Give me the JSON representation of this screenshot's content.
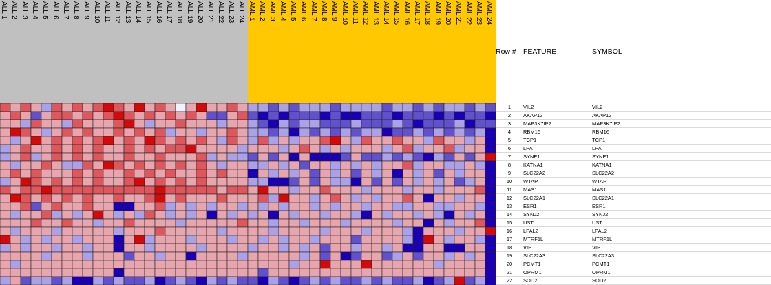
{
  "headers": {
    "row_num": "Row #",
    "feature": "FEATURE",
    "symbol": "SYMBOL"
  },
  "colors": {
    "group_all": "#c0c0c0",
    "group_aml": "#ffc800",
    "low": "#1a00b4",
    "mid": "#f2f2ff",
    "high": "#d20a0a"
  },
  "chart_data": {
    "type": "heatmap",
    "columns": [
      "ALL 1",
      "ALL 2",
      "ALL 3",
      "ALL 4",
      "ALL 5",
      "ALL 6",
      "ALL 7",
      "ALL 8",
      "ALL 9",
      "ALL 10",
      "ALL 11",
      "ALL 12",
      "ALL 13",
      "ALL 14",
      "ALL 15",
      "ALL 16",
      "ALL 17",
      "ALL 18",
      "ALL 19",
      "ALL 20",
      "ALL 21",
      "ALL 22",
      "ALL 23",
      "ALL 24",
      "AML 1",
      "AML 2",
      "AML 3",
      "AML 4",
      "AML 5",
      "AML 6",
      "AML 7",
      "AML 8",
      "AML 9",
      "AML 10",
      "AML 11",
      "AML 12",
      "AML 13",
      "AML 14",
      "AML 15",
      "AML 16",
      "AML 17",
      "AML 18",
      "AML 19",
      "AML 20",
      "AML 21",
      "AML 22",
      "AML 23",
      "AML 24"
    ],
    "column_groups": [
      "ALL",
      "ALL",
      "ALL",
      "ALL",
      "ALL",
      "ALL",
      "ALL",
      "ALL",
      "ALL",
      "ALL",
      "ALL",
      "ALL",
      "ALL",
      "ALL",
      "ALL",
      "ALL",
      "ALL",
      "ALL",
      "ALL",
      "ALL",
      "ALL",
      "ALL",
      "ALL",
      "ALL",
      "AML",
      "AML",
      "AML",
      "AML",
      "AML",
      "AML",
      "AML",
      "AML",
      "AML",
      "AML",
      "AML",
      "AML",
      "AML",
      "AML",
      "AML",
      "AML",
      "AML",
      "AML",
      "AML",
      "AML",
      "AML",
      "AML",
      "AML",
      "AML"
    ],
    "rows": [
      {
        "num": "1",
        "feature": "VIL2",
        "symbol": "VIL2"
      },
      {
        "num": "2",
        "feature": "AKAP12",
        "symbol": "AKAP12"
      },
      {
        "num": "3",
        "feature": "MAP3K7IP2",
        "symbol": "MAP3K7IP2"
      },
      {
        "num": "4",
        "feature": "RBM16",
        "symbol": "RBM16"
      },
      {
        "num": "5",
        "feature": "TCP1",
        "symbol": "TCP1"
      },
      {
        "num": "6",
        "feature": "LPA",
        "symbol": "LPA"
      },
      {
        "num": "7",
        "feature": "SYNE1",
        "symbol": "SYNE1"
      },
      {
        "num": "8",
        "feature": "KATNA1",
        "symbol": "KATNA1"
      },
      {
        "num": "9",
        "feature": "SLC22A2",
        "symbol": "SLC22A2"
      },
      {
        "num": "10",
        "feature": "WTAP",
        "symbol": "WTAP"
      },
      {
        "num": "11",
        "feature": "MAS1",
        "symbol": "MAS1"
      },
      {
        "num": "12",
        "feature": "SLC22A1",
        "symbol": "SLC22A1"
      },
      {
        "num": "13",
        "feature": "ESR1",
        "symbol": "ESR1"
      },
      {
        "num": "14",
        "feature": "SYNJ2",
        "symbol": "SYNJ2"
      },
      {
        "num": "15",
        "feature": "UST",
        "symbol": "UST"
      },
      {
        "num": "16",
        "feature": "LPAL2",
        "symbol": "LPAL2"
      },
      {
        "num": "17",
        "feature": "MTRF1L",
        "symbol": "MTRF1L"
      },
      {
        "num": "18",
        "feature": "VIP",
        "symbol": "VIP"
      },
      {
        "num": "19",
        "feature": "SLC22A3",
        "symbol": "SLC22A3"
      },
      {
        "num": "20",
        "feature": "PCMT1",
        "symbol": "PCMT1"
      },
      {
        "num": "21",
        "feature": "OPRM1",
        "symbol": "OPRM1"
      },
      {
        "num": "22",
        "feature": "SOD2",
        "symbol": "SOD2"
      }
    ],
    "values": [
      [
        2,
        1,
        2,
        1,
        -1,
        2,
        1,
        2,
        1,
        2,
        3,
        2,
        1,
        3,
        1,
        2,
        1,
        0,
        1,
        3,
        1,
        1,
        2,
        1,
        -1,
        -1,
        -2,
        -1,
        -2,
        -1,
        -1,
        -1,
        -2,
        -1,
        -1,
        -1,
        -1,
        -2,
        -1,
        -1,
        -2,
        -1,
        -2,
        -1,
        -1,
        -2,
        -1,
        -2
      ],
      [
        1,
        2,
        1,
        -2,
        1,
        2,
        2,
        1,
        2,
        1,
        2,
        3,
        2,
        1,
        2,
        1,
        2,
        1,
        2,
        1,
        -2,
        -2,
        1,
        2,
        -2,
        -3,
        -2,
        -3,
        -2,
        -2,
        -2,
        -3,
        -2,
        -3,
        -3,
        -2,
        -2,
        -2,
        -3,
        -2,
        -2,
        -2,
        -3,
        -2,
        -3,
        -2,
        -2,
        -3
      ],
      [
        1,
        1,
        -1,
        2,
        1,
        1,
        -1,
        2,
        1,
        1,
        1,
        2,
        3,
        1,
        -1,
        1,
        1,
        2,
        1,
        1,
        1,
        -1,
        1,
        1,
        -1,
        -2,
        -3,
        -1,
        -2,
        -1,
        -1,
        -2,
        -2,
        -2,
        -1,
        -2,
        -2,
        -2,
        -1,
        -2,
        -3,
        -2,
        -2,
        -2,
        -1,
        -3,
        -2,
        -2
      ],
      [
        1,
        3,
        2,
        1,
        -1,
        1,
        2,
        1,
        2,
        1,
        1,
        2,
        1,
        2,
        1,
        2,
        -1,
        1,
        1,
        -1,
        1,
        1,
        2,
        1,
        -1,
        -1,
        -2,
        -1,
        -3,
        -1,
        -2,
        -1,
        -2,
        -1,
        -2,
        -1,
        -1,
        -3,
        -2,
        -2,
        -1,
        -2,
        -1,
        -2,
        -1,
        -2,
        -1,
        -3
      ],
      [
        1,
        -1,
        1,
        3,
        1,
        2,
        1,
        2,
        1,
        2,
        3,
        1,
        2,
        1,
        3,
        2,
        1,
        2,
        1,
        2,
        1,
        -1,
        2,
        1,
        -1,
        2,
        -1,
        1,
        -1,
        1,
        1,
        2,
        3,
        1,
        -1,
        2,
        1,
        1,
        2,
        1,
        1,
        -1,
        2,
        1,
        1,
        -1,
        1,
        -3
      ],
      [
        -1,
        1,
        2,
        1,
        1,
        2,
        1,
        2,
        1,
        2,
        1,
        1,
        2,
        1,
        2,
        1,
        2,
        2,
        3,
        1,
        1,
        1,
        1,
        -1,
        1,
        1,
        1,
        -1,
        1,
        2,
        1,
        -1,
        1,
        -1,
        1,
        1,
        1,
        -1,
        1,
        2,
        -1,
        1,
        1,
        2,
        -1,
        1,
        1,
        -3
      ],
      [
        -1,
        1,
        2,
        -1,
        1,
        2,
        1,
        2,
        1,
        2,
        1,
        1,
        2,
        1,
        1,
        2,
        1,
        1,
        1,
        2,
        -1,
        1,
        -1,
        -1,
        -2,
        1,
        -2,
        1,
        -3,
        1,
        -3,
        -3,
        -3,
        -2,
        1,
        -2,
        -2,
        -1,
        -2,
        -1,
        -2,
        -3,
        -1,
        -2,
        1,
        -2,
        1,
        3
      ],
      [
        1,
        -1,
        1,
        1,
        2,
        1,
        -1,
        -1,
        2,
        1,
        3,
        2,
        1,
        2,
        1,
        2,
        1,
        2,
        1,
        2,
        1,
        -1,
        1,
        1,
        -1,
        -1,
        1,
        -1,
        1,
        -2,
        1,
        1,
        -1,
        1,
        -1,
        1,
        -1,
        1,
        1,
        2,
        -1,
        1,
        1,
        -1,
        -1,
        1,
        -1,
        -3
      ],
      [
        1,
        2,
        1,
        2,
        1,
        1,
        1,
        2,
        1,
        2,
        1,
        1,
        2,
        1,
        2,
        1,
        2,
        1,
        1,
        2,
        1,
        2,
        1,
        1,
        -3,
        1,
        -1,
        1,
        -1,
        1,
        -2,
        1,
        -1,
        1,
        -2,
        1,
        -1,
        1,
        -3,
        1,
        -1,
        1,
        -2,
        1,
        -1,
        1,
        1,
        -3
      ],
      [
        -1,
        1,
        3,
        2,
        1,
        2,
        1,
        2,
        1,
        2,
        1,
        1,
        2,
        3,
        1,
        2,
        1,
        2,
        1,
        2,
        1,
        1,
        1,
        1,
        -1,
        -1,
        -3,
        -3,
        -2,
        1,
        -2,
        1,
        -1,
        -1,
        -3,
        1,
        -2,
        1,
        -2,
        1,
        -1,
        1,
        -1,
        1,
        -2,
        -1,
        1,
        -3
      ],
      [
        2,
        1,
        2,
        2,
        3,
        2,
        2,
        2,
        2,
        2,
        2,
        2,
        2,
        2,
        2,
        3,
        2,
        2,
        2,
        2,
        2,
        1,
        2,
        2,
        1,
        3,
        1,
        1,
        -1,
        1,
        1,
        2,
        1,
        1,
        1,
        -1,
        1,
        1,
        1,
        -1,
        1,
        1,
        -1,
        1,
        1,
        1,
        2,
        -3
      ],
      [
        1,
        3,
        2,
        1,
        2,
        1,
        2,
        1,
        2,
        1,
        1,
        2,
        1,
        1,
        2,
        3,
        1,
        2,
        1,
        1,
        1,
        2,
        1,
        1,
        1,
        2,
        -1,
        3,
        1,
        1,
        -1,
        1,
        2,
        1,
        -1,
        1,
        -1,
        1,
        1,
        2,
        1,
        -3,
        1,
        1,
        -1,
        1,
        1,
        -3
      ],
      [
        1,
        1,
        2,
        -2,
        1,
        2,
        1,
        1,
        2,
        1,
        1,
        -3,
        -3,
        1,
        1,
        2,
        -1,
        1,
        -1,
        1,
        -1,
        1,
        1,
        -1,
        1,
        -1,
        1,
        -1,
        1,
        1,
        -1,
        1,
        -1,
        1,
        1,
        -1,
        1,
        1,
        -1,
        -1,
        1,
        1,
        -1,
        -1,
        1,
        1,
        -1,
        -3
      ],
      [
        1,
        -1,
        1,
        1,
        2,
        -1,
        1,
        -1,
        1,
        3,
        1,
        -1,
        1,
        -1,
        2,
        1,
        -1,
        1,
        -1,
        1,
        -3,
        1,
        -1,
        1,
        -1,
        1,
        -3,
        1,
        -1,
        1,
        1,
        -1,
        1,
        1,
        -1,
        -3,
        1,
        -1,
        1,
        1,
        -1,
        1,
        -1,
        -3,
        1,
        -1,
        1,
        -3
      ],
      [
        1,
        1,
        1,
        2,
        1,
        1,
        2,
        1,
        1,
        -1,
        1,
        1,
        2,
        1,
        1,
        1,
        1,
        -1,
        1,
        1,
        1,
        1,
        1,
        2,
        1,
        1,
        -1,
        1,
        1,
        -1,
        1,
        1,
        1,
        -1,
        1,
        1,
        1,
        1,
        -1,
        1,
        1,
        -3,
        1,
        -1,
        1,
        1,
        2,
        -3
      ],
      [
        1,
        -1,
        1,
        1,
        1,
        -1,
        1,
        1,
        1,
        1,
        1,
        -1,
        1,
        1,
        1,
        2,
        1,
        1,
        1,
        1,
        1,
        -1,
        1,
        1,
        1,
        1,
        -1,
        1,
        1,
        1,
        1,
        -1,
        1,
        1,
        1,
        -1,
        1,
        1,
        1,
        -1,
        -3,
        1,
        1,
        1,
        -1,
        1,
        1,
        3
      ],
      [
        3,
        1,
        -1,
        1,
        -1,
        1,
        1,
        -1,
        1,
        1,
        1,
        -3,
        1,
        3,
        -1,
        1,
        1,
        1,
        -1,
        1,
        1,
        1,
        -1,
        1,
        1,
        -1,
        1,
        -1,
        1,
        1,
        -1,
        1,
        1,
        1,
        -2,
        1,
        1,
        1,
        1,
        -1,
        -3,
        3,
        1,
        -1,
        1,
        1,
        -1,
        -3
      ],
      [
        -1,
        1,
        -1,
        1,
        1,
        -1,
        1,
        1,
        -1,
        1,
        1,
        -3,
        1,
        1,
        -1,
        1,
        1,
        1,
        1,
        -1,
        1,
        1,
        1,
        1,
        -1,
        1,
        1,
        -1,
        1,
        -1,
        1,
        -2,
        1,
        1,
        -1,
        1,
        1,
        -1,
        1,
        -3,
        -3,
        1,
        1,
        -3,
        -3,
        1,
        1,
        -3
      ],
      [
        1,
        1,
        1,
        1,
        -1,
        1,
        1,
        1,
        -1,
        1,
        1,
        1,
        -2,
        1,
        1,
        -1,
        1,
        1,
        -3,
        1,
        1,
        1,
        1,
        -1,
        1,
        1,
        1,
        1,
        1,
        -1,
        1,
        -2,
        1,
        -3,
        -2,
        1,
        1,
        -2,
        -1,
        1,
        -2,
        1,
        1,
        -1,
        1,
        -1,
        1,
        -3
      ],
      [
        1,
        -1,
        1,
        1,
        1,
        1,
        1,
        1,
        1,
        1,
        1,
        1,
        1,
        1,
        1,
        1,
        1,
        1,
        1,
        1,
        1,
        1,
        1,
        1,
        1,
        1,
        1,
        1,
        -1,
        1,
        1,
        3,
        1,
        1,
        1,
        3,
        1,
        1,
        1,
        1,
        1,
        1,
        -1,
        1,
        1,
        1,
        1,
        -3
      ],
      [
        1,
        1,
        1,
        1,
        1,
        1,
        1,
        1,
        1,
        1,
        1,
        -3,
        1,
        1,
        1,
        1,
        1,
        1,
        1,
        1,
        1,
        1,
        1,
        1,
        1,
        -2,
        1,
        1,
        1,
        1,
        1,
        1,
        1,
        1,
        1,
        1,
        1,
        1,
        1,
        1,
        1,
        1,
        1,
        1,
        1,
        1,
        1,
        -3
      ],
      [
        -1,
        1,
        -2,
        -1,
        -1,
        -2,
        -1,
        -3,
        -3,
        -1,
        -2,
        -1,
        -2,
        -2,
        -1,
        -3,
        -2,
        -1,
        -2,
        -3,
        -1,
        -2,
        -1,
        -2,
        -2,
        -3,
        -1,
        -2,
        -3,
        -2,
        -1,
        -2,
        -1,
        -2,
        -2,
        -1,
        -2,
        -1,
        -2,
        -2,
        -1,
        -3,
        -2,
        -1,
        3,
        -2,
        -1,
        -3
      ]
    ],
    "value_range": [
      -3,
      3
    ]
  }
}
